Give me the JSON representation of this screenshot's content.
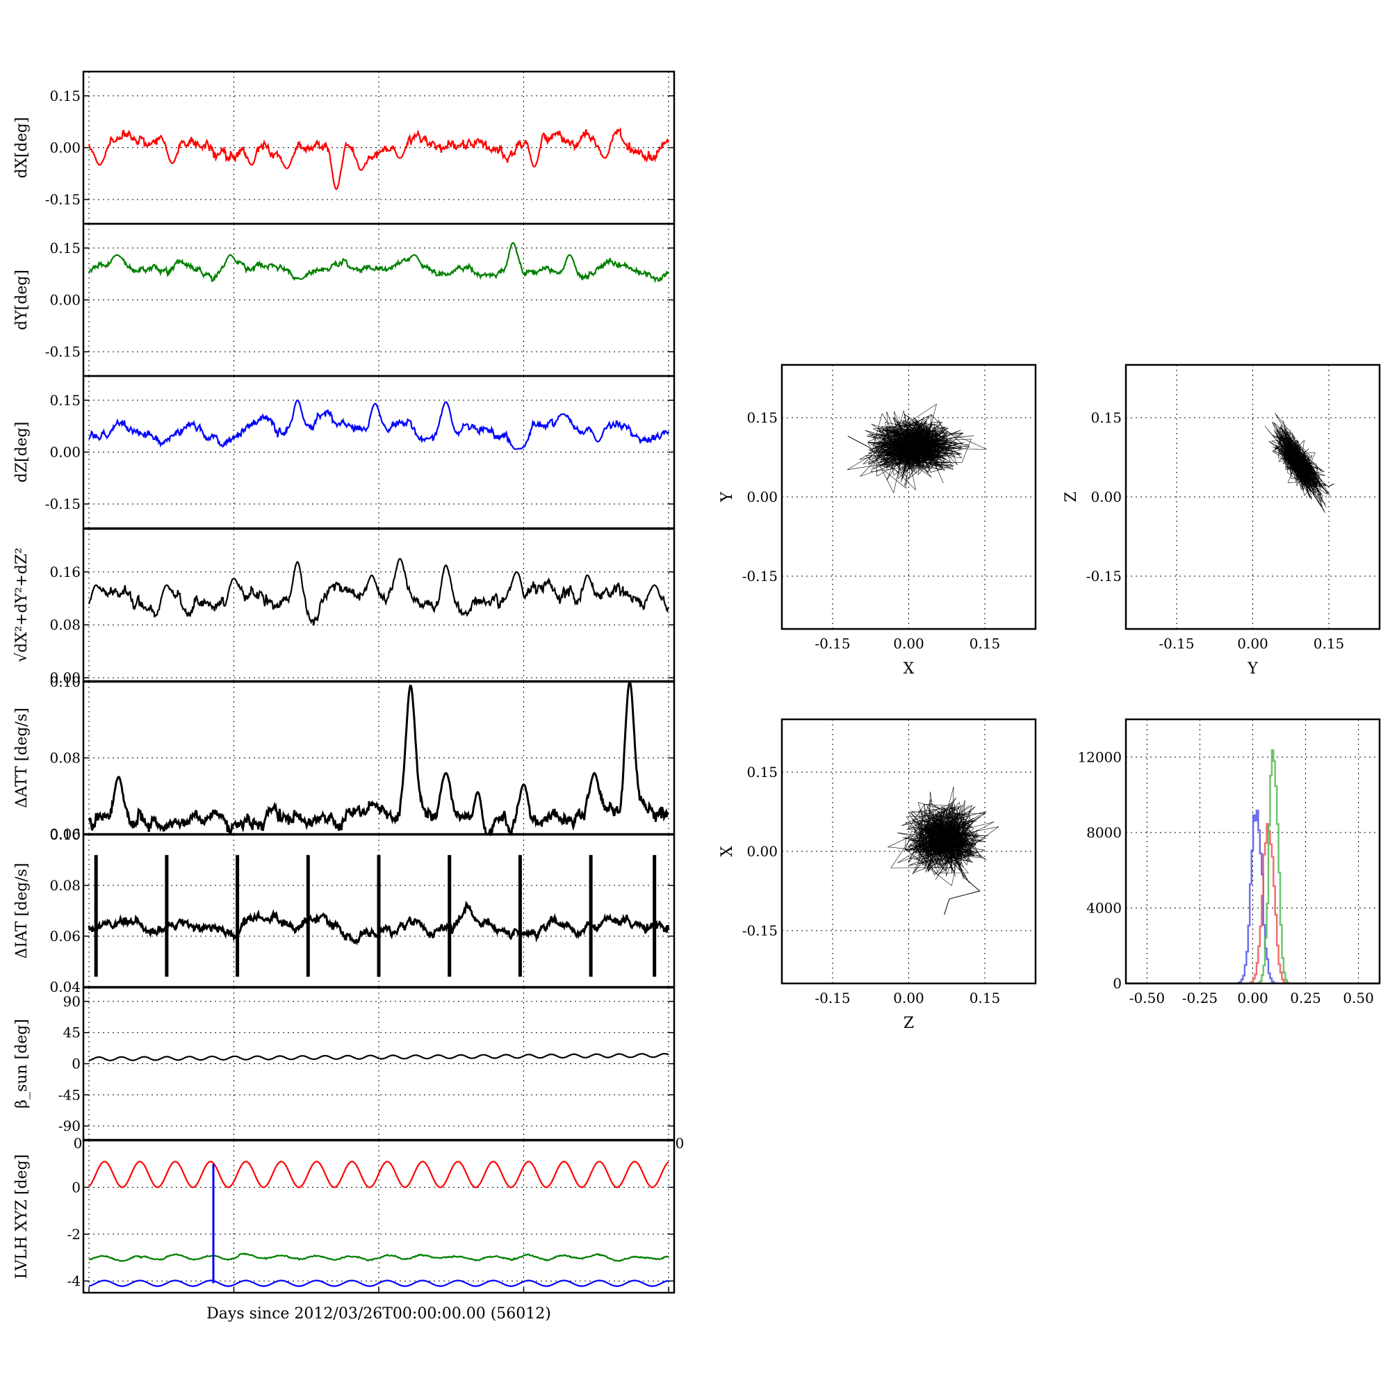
{
  "figure": {
    "xlabel": "Days since 2012/03/26T00:00:00.00 (56012)",
    "stray_tick_left": "0",
    "stray_tick_right": "0"
  },
  "chart_data": [
    {
      "id": "dX",
      "type": "line",
      "ylabel": "dX[deg]",
      "ylim": [
        -0.22,
        0.22
      ],
      "yticks": [
        "0.15",
        "0.00",
        "-0.15"
      ],
      "ytick_values": [
        0.15,
        0.0,
        -0.15
      ],
      "series": [
        {
          "color": "#ff0000",
          "base": 0.01,
          "amp": 0.018,
          "noise": 0.01,
          "period": 10,
          "events": [
            [
              1.5,
              -0.05
            ],
            [
              11.8,
              -0.045
            ],
            [
              23,
              -0.05
            ],
            [
              28,
              -0.06
            ],
            [
              35,
              -0.12
            ],
            [
              38.5,
              -0.065
            ],
            [
              44,
              -0.03
            ],
            [
              63,
              -0.055
            ],
            [
              73,
              -0.03
            ]
          ]
        }
      ]
    },
    {
      "id": "dY",
      "type": "line",
      "ylabel": "dY[deg]",
      "ylim": [
        -0.22,
        0.22
      ],
      "yticks": [
        "0.15",
        "0.00",
        "-0.15"
      ],
      "ytick_values": [
        0.15,
        0.0,
        -0.15
      ],
      "series": [
        {
          "color": "#008000",
          "base": 0.09,
          "amp": 0.01,
          "noise": 0.006,
          "period": 10,
          "events": [
            [
              4,
              0.13
            ],
            [
              20,
              0.13
            ],
            [
              30,
              0.06
            ],
            [
              46,
              0.13
            ],
            [
              60,
              0.165
            ],
            [
              68,
              0.13
            ]
          ]
        }
      ]
    },
    {
      "id": "dZ",
      "type": "line",
      "ylabel": "dZ[deg]",
      "ylim": [
        -0.22,
        0.22
      ],
      "yticks": [
        "0.15",
        "0.00",
        "-0.15"
      ],
      "ytick_values": [
        0.15,
        0.0,
        -0.15
      ],
      "series": [
        {
          "color": "#0000ff",
          "base": 0.055,
          "amp": 0.02,
          "noise": 0.008,
          "period": 10,
          "events": [
            [
              29.5,
              0.15
            ],
            [
              40.5,
              0.14
            ],
            [
              50.5,
              0.145
            ],
            [
              60.5,
              0.005
            ],
            [
              61,
              0.01
            ],
            [
              67,
              0.11
            ],
            [
              72,
              0.03
            ]
          ]
        }
      ]
    },
    {
      "id": "dR",
      "type": "line",
      "ylabel": "√dX²+dY²+dZ²",
      "ylim": [
        -0.005,
        0.225
      ],
      "yticks": [
        "0.16",
        "0.08",
        "0.00"
      ],
      "ytick_values": [
        0.16,
        0.08,
        0.0
      ],
      "series": [
        {
          "color": "#000000",
          "base": 0.115,
          "amp": 0.01,
          "noise": 0.006,
          "period": 10,
          "events": [
            [
              1,
              0.14
            ],
            [
              11,
              0.14
            ],
            [
              20.5,
              0.15
            ],
            [
              29.5,
              0.175
            ],
            [
              40,
              0.155
            ],
            [
              44,
              0.18
            ],
            [
              50.5,
              0.17
            ],
            [
              60.5,
              0.16
            ],
            [
              70.5,
              0.155
            ],
            [
              80,
              0.14
            ]
          ]
        }
      ]
    },
    {
      "id": "dATT",
      "type": "line",
      "ylabel": "ΔATT [deg/s]",
      "ylim": [
        0.06,
        0.1
      ],
      " yticks": [],
      "yticks": [
        "0.10",
        "0.08",
        "0.06"
      ],
      "ytick_values": [
        0.1,
        0.08,
        0.06
      ],
      "series": [
        {
          "color": "#000000",
          "base": 0.0645,
          "amp": 0.0005,
          "noise": 0.0012,
          "period": 4,
          "events": [
            [
              4.2,
              0.075
            ],
            [
              45.5,
              0.099
            ],
            [
              50.5,
              0.076
            ],
            [
              55,
              0.071
            ],
            [
              61.5,
              0.073
            ],
            [
              71.5,
              0.076
            ],
            [
              76.5,
              0.1
            ]
          ]
        }
      ]
    },
    {
      "id": "dIAT",
      "type": "line",
      "ylabel": "ΔIAT [deg/s]",
      "ylim": [
        0.04,
        0.1
      ],
      "yticks": [
        "0.10",
        "0.08",
        "0.06",
        "0.04"
      ],
      "ytick_values": [
        0.1,
        0.08,
        0.06,
        0.04
      ],
      "series": [
        {
          "color": "#000000",
          "base": 0.064,
          "amp": 0.002,
          "noise": 0.0012,
          "period": 10,
          "spikes": [
            1,
            11,
            21,
            31,
            41,
            51,
            61,
            71,
            80
          ]
        }
      ]
    },
    {
      "id": "beta",
      "type": "line",
      "ylabel": "β_sun [deg]",
      "ylim": [
        -110,
        110
      ],
      "yticks": [
        "90",
        "45",
        "0",
        "-45",
        "-90"
      ],
      "ytick_values": [
        90,
        45,
        0,
        -45,
        -90
      ],
      "series": [
        {
          "color": "#000000",
          "base": 7,
          "trend": 5,
          "amp": 2.5,
          "noise": 0,
          "period": 3.2
        }
      ]
    },
    {
      "id": "lvlh",
      "type": "line",
      "ylabel": "LVLH XYZ [deg]",
      "ylim": [
        -4.5,
        2.0
      ],
      "yticks": [
        "0",
        "-2",
        "-4"
      ],
      "ytick_values": [
        0,
        -2,
        -4
      ],
      "series": [
        {
          "color": "#ff0000",
          "base": 0.55,
          "amp": 0.55,
          "noise": 0,
          "period": 5
        },
        {
          "color": "#008000",
          "base": -3.0,
          "amp": 0.08,
          "noise": 0.02,
          "period": 5
        },
        {
          "color": "#0000ff",
          "base": -4.1,
          "amp": 0.12,
          "noise": 0,
          "period": 5,
          "spike": [
            17.6,
            1.0
          ]
        }
      ]
    },
    {
      "id": "XY",
      "type": "scatter",
      "xlabel": "X",
      "ylabel": "Y",
      "ticks": [
        "-0.15",
        "0.00",
        "0.15"
      ],
      "tick_values": [
        -0.15,
        0.0,
        0.15
      ],
      "lim": [
        -0.25,
        0.25
      ],
      "cloud": {
        "cx": 0.01,
        "cy": 0.095,
        "sx": 0.04,
        "sy": 0.025,
        "rot": 0,
        "n": 900
      },
      "tail": [
        [
          0.01,
          0.095
        ],
        [
          -0.05,
          0.07
        ],
        [
          -0.08,
          0.095
        ],
        [
          -0.12,
          0.115
        ]
      ]
    },
    {
      "id": "YZ",
      "type": "scatter",
      "xlabel": "Y",
      "ylabel": "Z",
      "ticks": [
        "-0.15",
        "0.00",
        "0.15"
      ],
      "tick_values": [
        -0.15,
        0.0,
        0.15
      ],
      "lim": [
        -0.25,
        0.25
      ],
      "cloud": {
        "cx": 0.09,
        "cy": 0.065,
        "sx": 0.035,
        "sy": 0.012,
        "rot": -55,
        "n": 700
      },
      "tail": [
        [
          0.12,
          0.03
        ],
        [
          0.15,
          0.02
        ],
        [
          0.16,
          0.025
        ]
      ]
    },
    {
      "id": "ZX",
      "type": "scatter",
      "xlabel": "Z",
      "ylabel": "X",
      "ticks": [
        "-0.15",
        "0.00",
        "0.15"
      ],
      "tick_values": [
        -0.15,
        0.0,
        0.15
      ],
      "lim": [
        -0.25,
        0.25
      ],
      "cloud": {
        "cx": 0.07,
        "cy": 0.025,
        "sx": 0.035,
        "sy": 0.03,
        "rot": 0,
        "n": 800
      },
      "tail": [
        [
          0.07,
          0.025
        ],
        [
          0.11,
          -0.05
        ],
        [
          0.14,
          -0.075
        ],
        [
          0.08,
          -0.09
        ],
        [
          0.07,
          -0.12
        ]
      ]
    },
    {
      "id": "hist",
      "type": "bar",
      "xticks": [
        "-0.50",
        "-0.25",
        "0.00",
        "0.25",
        "0.50"
      ],
      "xtick_values": [
        -0.5,
        -0.25,
        0.0,
        0.25,
        0.5
      ],
      "yticks": [
        "12000",
        "8000",
        "4000",
        "0"
      ],
      "ytick_values": [
        12000,
        8000,
        4000,
        0
      ],
      "xlim": [
        -0.6,
        0.6
      ],
      "ylim": [
        0,
        14000
      ],
      "series": [
        {
          "color": "#5555ee",
          "center": 0.015,
          "sigma": 0.025,
          "peak": 9200
        },
        {
          "color": "#ee5555",
          "center": 0.07,
          "sigma": 0.025,
          "peak": 9300
        },
        {
          "color": "#55bb55",
          "center": 0.095,
          "sigma": 0.02,
          "peak": 13500
        }
      ]
    }
  ]
}
